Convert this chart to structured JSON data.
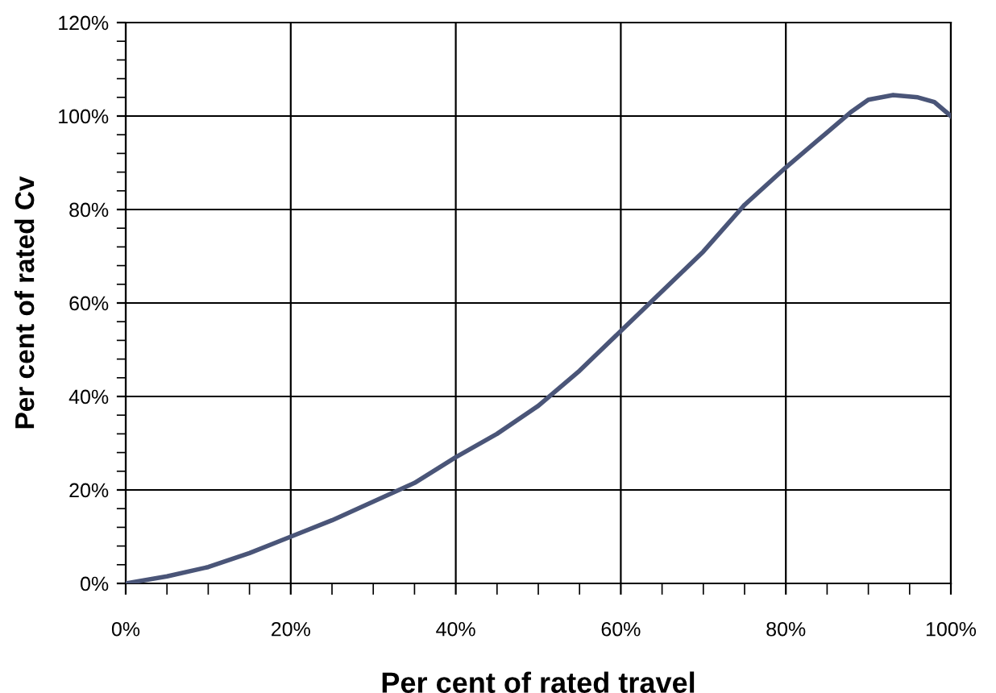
{
  "chart_data": {
    "type": "line",
    "xlabel": "Per cent of rated travel",
    "ylabel": "Per cent of rated Cv",
    "x": [
      0,
      5,
      10,
      15,
      20,
      25,
      30,
      35,
      40,
      45,
      50,
      55,
      60,
      65,
      70,
      75,
      80,
      85,
      88,
      90,
      93,
      96,
      98,
      100
    ],
    "series": [
      {
        "color": "#4a5578",
        "values": [
          0,
          1.5,
          3.5,
          6.5,
          10,
          13.5,
          17.5,
          21.5,
          27,
          32,
          38,
          45.5,
          54,
          62.5,
          71,
          81,
          89,
          96.5,
          101,
          103.5,
          104.5,
          104,
          103,
          100
        ]
      }
    ],
    "xlim": [
      0,
      100
    ],
    "ylim": [
      0,
      120
    ],
    "xticks": [
      {
        "value": 0,
        "label": "0%"
      },
      {
        "value": 20,
        "label": "20%"
      },
      {
        "value": 40,
        "label": "40%"
      },
      {
        "value": 60,
        "label": "60%"
      },
      {
        "value": 80,
        "label": "80%"
      },
      {
        "value": 100,
        "label": "100%"
      }
    ],
    "yticks": [
      {
        "value": 0,
        "label": "0%"
      },
      {
        "value": 20,
        "label": "20%"
      },
      {
        "value": 40,
        "label": "40%"
      },
      {
        "value": 60,
        "label": "60%"
      },
      {
        "value": 80,
        "label": "80%"
      },
      {
        "value": 100,
        "label": "100%"
      },
      {
        "value": 120,
        "label": "120%"
      }
    ],
    "grid": true,
    "legend": false,
    "marker": "none",
    "line_style": "solid"
  }
}
